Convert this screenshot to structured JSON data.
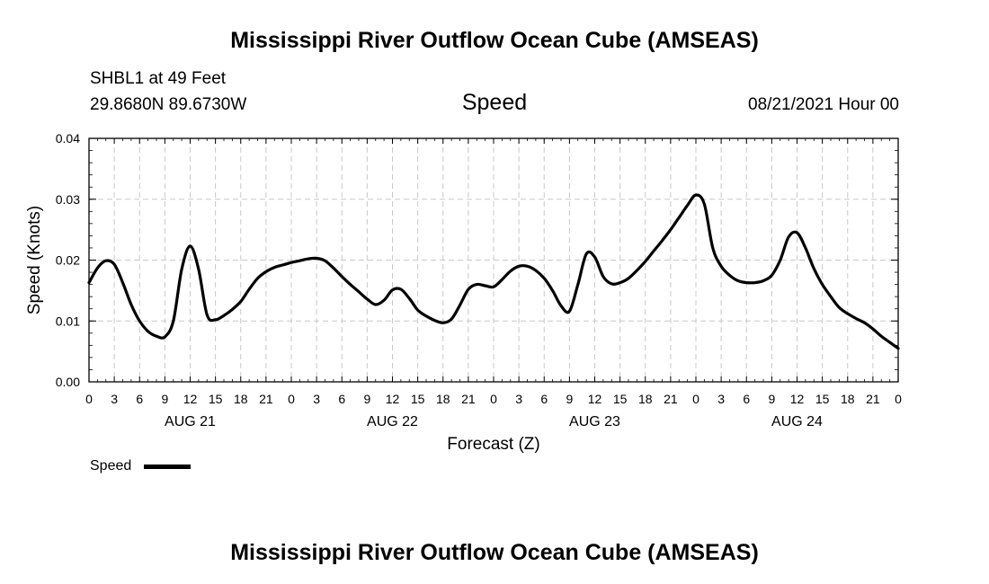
{
  "header": {
    "title": "Mississippi River Outflow Ocean Cube (AMSEAS)",
    "station": "SHBL1 at 49 Feet",
    "location": "29.8680N  89.6730W",
    "variable": "Speed",
    "datetime": "08/21/2021 Hour 00"
  },
  "footer": {
    "title": "Mississippi River Outflow Ocean Cube (AMSEAS)"
  },
  "legend": {
    "label": "Speed",
    "color": "#000000"
  },
  "chart_data": {
    "type": "line",
    "title": "Speed",
    "xlabel": "Forecast (Z)",
    "ylabel": "Speed (Knots)",
    "xlim": [
      0,
      96
    ],
    "ylim": [
      0.0,
      0.04
    ],
    "grid": true,
    "y_ticks": [
      0.0,
      0.01,
      0.02,
      0.03,
      0.04
    ],
    "y_tick_labels": [
      "0.00",
      "0.01",
      "0.02",
      "0.03",
      "0.04"
    ],
    "x_tick_hours": [
      0,
      3,
      6,
      9,
      12,
      15,
      18,
      21,
      24,
      27,
      30,
      33,
      36,
      39,
      42,
      45,
      48,
      51,
      54,
      57,
      60,
      63,
      66,
      69,
      72,
      75,
      78,
      81,
      84,
      87,
      90,
      93,
      96
    ],
    "x_tick_labels": [
      "0",
      "3",
      "6",
      "9",
      "12",
      "15",
      "18",
      "21",
      "0",
      "3",
      "6",
      "9",
      "12",
      "15",
      "18",
      "21",
      "0",
      "3",
      "6",
      "9",
      "12",
      "15",
      "18",
      "21",
      "0",
      "3",
      "6",
      "9",
      "12",
      "15",
      "18",
      "21",
      "0"
    ],
    "day_labels": [
      {
        "hour": 12,
        "label": "AUG 21"
      },
      {
        "hour": 36,
        "label": "AUG 22"
      },
      {
        "hour": 60,
        "label": "AUG 23"
      },
      {
        "hour": 84,
        "label": "AUG 24"
      }
    ],
    "series": [
      {
        "name": "Speed",
        "x": [
          0,
          1,
          2,
          3,
          4,
          5,
          6,
          7,
          8,
          9,
          10,
          11,
          12,
          13,
          14,
          15,
          16,
          17,
          18,
          19,
          20,
          21,
          22,
          23,
          24,
          25,
          26,
          27,
          28,
          29,
          30,
          31,
          32,
          33,
          34,
          35,
          36,
          37,
          38,
          39,
          40,
          41,
          42,
          43,
          44,
          45,
          46,
          47,
          48,
          49,
          50,
          51,
          52,
          53,
          54,
          55,
          56,
          57,
          58,
          59,
          60,
          61,
          62,
          63,
          64,
          65,
          66,
          67,
          68,
          69,
          70,
          71,
          72,
          73,
          74,
          75,
          76,
          77,
          78,
          79,
          80,
          81,
          82,
          83,
          84,
          85,
          86,
          87,
          88,
          89,
          90,
          91,
          92,
          93,
          94,
          95,
          96
        ],
        "values": [
          0.0163,
          0.0187,
          0.0199,
          0.0193,
          0.0163,
          0.0127,
          0.01,
          0.0083,
          0.0075,
          0.0074,
          0.01,
          0.0185,
          0.0223,
          0.0185,
          0.011,
          0.0102,
          0.0109,
          0.0119,
          0.0132,
          0.0152,
          0.017,
          0.0181,
          0.0188,
          0.0192,
          0.0196,
          0.0199,
          0.0202,
          0.0203,
          0.0199,
          0.0187,
          0.0173,
          0.016,
          0.0148,
          0.0136,
          0.0127,
          0.0134,
          0.0151,
          0.0152,
          0.0137,
          0.0118,
          0.0108,
          0.0101,
          0.0097,
          0.0103,
          0.0126,
          0.0152,
          0.016,
          0.0158,
          0.0156,
          0.0168,
          0.0182,
          0.019,
          0.019,
          0.0183,
          0.017,
          0.015,
          0.0125,
          0.0116,
          0.016,
          0.021,
          0.0205,
          0.0173,
          0.0161,
          0.0163,
          0.017,
          0.0183,
          0.0198,
          0.0215,
          0.0232,
          0.025,
          0.027,
          0.029,
          0.0307,
          0.0292,
          0.022,
          0.019,
          0.0175,
          0.0166,
          0.0163,
          0.0163,
          0.0166,
          0.0175,
          0.02,
          0.0238,
          0.0245,
          0.022,
          0.0186,
          0.016,
          0.014,
          0.0122,
          0.0112,
          0.0104,
          0.0097,
          0.0087,
          0.0075,
          0.0065,
          0.0055
        ]
      }
    ]
  }
}
